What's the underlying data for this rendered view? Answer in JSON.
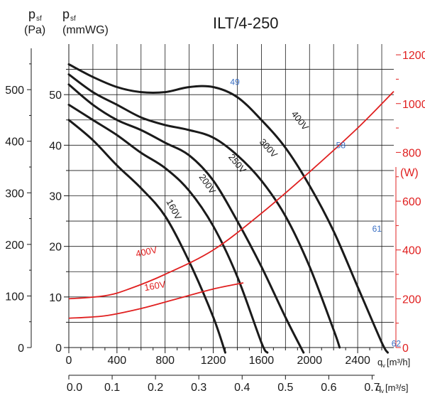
{
  "chart_data": {
    "type": "line",
    "title": "ILT/4-250",
    "left_axis_1": {
      "label_main": "p",
      "label_sub": "sf",
      "unit": "(Pa)",
      "ticks": [
        0,
        100,
        200,
        300,
        400,
        500
      ],
      "range": [
        0,
        588
      ]
    },
    "left_axis_2": {
      "label_main": "p",
      "label_sub": "sf",
      "unit": "(mmWG)",
      "ticks": [
        0,
        10,
        20,
        30,
        40,
        50
      ],
      "range": [
        0,
        60
      ]
    },
    "right_axis": {
      "label": "(W)",
      "ticks": [
        0,
        200,
        400,
        600,
        800,
        1000,
        1200
      ],
      "range": [
        0,
        1244
      ]
    },
    "x_axis_1": {
      "label": "q",
      "label_sub": "v",
      "unit": "[m³/h]",
      "ticks": [
        0,
        400,
        800,
        1200,
        1600,
        2000,
        2400
      ],
      "range": [
        0,
        2700
      ]
    },
    "x_axis_2": {
      "label": "q",
      "label_sub": "v",
      "unit": "[m³/s]",
      "ticks": [
        "0.0",
        "0.1",
        "0.2",
        "0.3",
        "0.4",
        "0.5",
        "0.6",
        "0.7"
      ]
    },
    "grid": true,
    "pressure_series": [
      {
        "name": "400V",
        "x_unit": "m3/h",
        "y_unit": "mmWG",
        "points": [
          [
            0,
            56
          ],
          [
            200,
            53.5
          ],
          [
            400,
            51.5
          ],
          [
            600,
            50.5
          ],
          [
            800,
            50.5
          ],
          [
            1000,
            51.5
          ],
          [
            1200,
            51.5
          ],
          [
            1400,
            49.5
          ],
          [
            1600,
            45
          ],
          [
            1800,
            39.5
          ],
          [
            2000,
            32
          ],
          [
            2200,
            23
          ],
          [
            2400,
            12
          ],
          [
            2600,
            1
          ],
          [
            2650,
            -1
          ]
        ]
      },
      {
        "name": "300V",
        "x_unit": "m3/h",
        "y_unit": "mmWG",
        "points": [
          [
            0,
            54
          ],
          [
            200,
            50.5
          ],
          [
            400,
            48
          ],
          [
            600,
            45.5
          ],
          [
            800,
            44
          ],
          [
            1000,
            43
          ],
          [
            1200,
            41.5
          ],
          [
            1400,
            38
          ],
          [
            1600,
            33
          ],
          [
            1800,
            26
          ],
          [
            2000,
            16
          ],
          [
            2200,
            3.5
          ],
          [
            2250,
            0
          ]
        ]
      },
      {
        "name": "250V",
        "x_unit": "m3/h",
        "y_unit": "mmWG",
        "points": [
          [
            0,
            52
          ],
          [
            200,
            48
          ],
          [
            400,
            45
          ],
          [
            600,
            43
          ],
          [
            800,
            40.5
          ],
          [
            1000,
            38
          ],
          [
            1200,
            33
          ],
          [
            1400,
            25
          ],
          [
            1600,
            16
          ],
          [
            1800,
            6
          ],
          [
            1950,
            -1
          ]
        ]
      },
      {
        "name": "200V",
        "x_unit": "m3/h",
        "y_unit": "mmWG",
        "points": [
          [
            0,
            48
          ],
          [
            200,
            45
          ],
          [
            400,
            42
          ],
          [
            600,
            38.5
          ],
          [
            800,
            35.5
          ],
          [
            1000,
            31
          ],
          [
            1200,
            24
          ],
          [
            1400,
            14
          ],
          [
            1600,
            1
          ],
          [
            1650,
            -1
          ]
        ]
      },
      {
        "name": "160V",
        "x_unit": "m3/h",
        "y_unit": "mmWG",
        "points": [
          [
            0,
            45
          ],
          [
            200,
            41
          ],
          [
            400,
            36
          ],
          [
            600,
            31.5
          ],
          [
            800,
            26
          ],
          [
            1000,
            17
          ],
          [
            1200,
            6
          ],
          [
            1300,
            -1
          ]
        ]
      }
    ],
    "power_series": [
      {
        "name": "400V",
        "x_unit": "m3/h",
        "y_unit": "W",
        "points": [
          [
            0,
            200
          ],
          [
            300,
            212
          ],
          [
            500,
            240
          ],
          [
            800,
            300
          ],
          [
            1200,
            400
          ],
          [
            1600,
            550
          ],
          [
            2000,
            720
          ],
          [
            2400,
            900
          ],
          [
            2700,
            1050
          ]
        ]
      },
      {
        "name": "160V",
        "x_unit": "m3/h",
        "y_unit": "W",
        "points": [
          [
            0,
            120
          ],
          [
            300,
            130
          ],
          [
            600,
            160
          ],
          [
            900,
            200
          ],
          [
            1200,
            240
          ],
          [
            1450,
            265
          ]
        ]
      }
    ],
    "annotations": [
      "49",
      "58",
      "61",
      "62"
    ]
  }
}
